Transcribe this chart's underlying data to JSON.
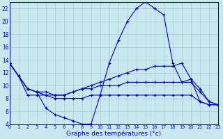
{
  "bg_color": "#c8e8f0",
  "grid_color": "#a8c8d8",
  "line_color": "#0000bb",
  "xlabel": "Graphe des températures (°c)",
  "xlim": [
    0,
    23
  ],
  "ylim": [
    4,
    23
  ],
  "x_ticks": [
    0,
    1,
    2,
    3,
    4,
    5,
    6,
    7,
    8,
    9,
    10,
    11,
    12,
    13,
    14,
    15,
    16,
    17,
    18,
    19,
    20,
    21,
    22,
    23
  ],
  "y_ticks": [
    4,
    6,
    8,
    10,
    12,
    14,
    16,
    18,
    20,
    22
  ],
  "curve1": [
    13.5,
    11.5,
    9.5,
    9.0,
    6.5,
    5.5,
    5.0,
    4.5,
    4.0,
    4.0,
    8.5,
    13.5,
    17.0,
    20.0,
    22.0,
    23.0,
    22.0,
    21.0,
    13.5,
    10.5,
    11.0,
    7.5,
    7.0,
    7.0
  ],
  "curve2": [
    13.5,
    11.5,
    9.5,
    9.0,
    8.5,
    8.5,
    8.5,
    9.0,
    9.5,
    10.0,
    10.5,
    11.0,
    11.5,
    12.0,
    12.5,
    12.5,
    13.0,
    13.0,
    13.0,
    13.5,
    11.0,
    9.5,
    7.5,
    7.0
  ],
  "curve3": [
    13.5,
    11.5,
    9.5,
    9.0,
    9.0,
    8.5,
    8.5,
    9.0,
    9.5,
    9.5,
    10.0,
    10.0,
    10.0,
    10.5,
    10.5,
    10.5,
    10.5,
    10.5,
    10.5,
    10.5,
    10.5,
    9.0,
    7.5,
    7.0
  ],
  "curve4": [
    13.5,
    11.5,
    8.5,
    8.5,
    8.5,
    8.0,
    8.0,
    8.0,
    8.0,
    8.5,
    8.5,
    8.5,
    8.5,
    8.5,
    8.5,
    8.5,
    8.5,
    8.5,
    8.5,
    8.5,
    8.5,
    7.5,
    7.0,
    7.0
  ]
}
